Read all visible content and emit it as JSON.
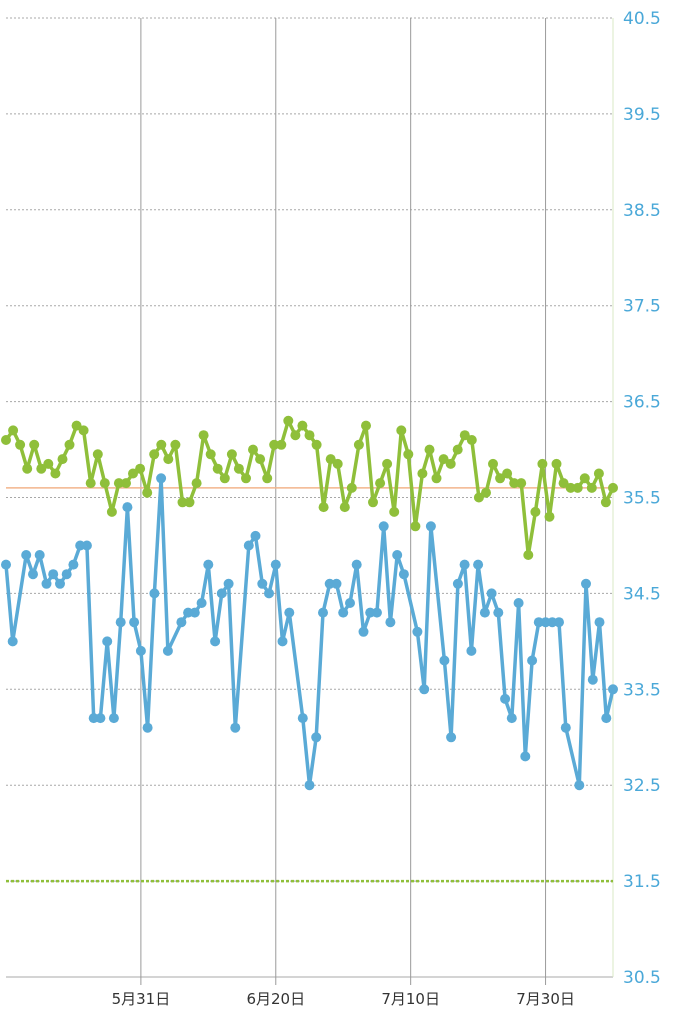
{
  "colors": {
    "series_a": "#5aaad6",
    "series_b": "#8fbf3a",
    "y_tick": "#4aa8d8",
    "x_tick": "#333333",
    "grid": "#a8a8a8",
    "reference_line": "#f2b48c",
    "threshold_line": "#8fbf3a"
  },
  "chart_data": {
    "type": "line",
    "title": "",
    "xlabel": "",
    "ylabel": "",
    "ylim": [
      30.5,
      40.5
    ],
    "y_axis_side": "right",
    "grid": true,
    "x_ticks": [
      "5月31日",
      "6月20日",
      "7月10日",
      "7月30日"
    ],
    "y_ticks": [
      "40.5",
      "39.5",
      "38.5",
      "37.5",
      "36.5",
      "35.5",
      "34.5",
      "33.5",
      "32.5",
      "31.5",
      "30.5"
    ],
    "reference_line": 35.6,
    "threshold_line": 31.5,
    "series": [
      {
        "color": "#8fbf3a",
        "values": [
          36.1,
          36.2,
          36.05,
          35.8,
          36.05,
          35.8,
          35.85,
          35.75,
          35.9,
          36.05,
          36.25,
          36.2,
          35.65,
          35.95,
          35.65,
          35.35,
          35.65,
          35.65,
          35.75,
          35.8,
          35.55,
          35.95,
          36.05,
          35.9,
          36.05,
          35.45,
          35.45,
          35.65,
          36.15,
          35.95,
          35.8,
          35.7,
          35.95,
          35.8,
          35.7,
          36.0,
          35.9,
          35.7,
          36.05,
          36.05,
          36.3,
          36.15,
          36.25,
          36.15,
          36.05,
          35.4,
          35.9,
          35.85,
          35.4,
          35.6,
          36.05,
          36.25,
          35.45,
          35.65,
          35.85,
          35.35,
          36.2,
          35.95,
          35.2,
          35.75,
          36.0,
          35.7,
          35.9,
          35.85,
          36.0,
          36.15,
          36.1,
          35.5,
          35.55,
          35.85,
          35.7,
          35.75,
          35.65,
          35.65,
          34.9,
          35.35,
          35.85,
          35.3,
          35.85,
          35.65,
          35.6,
          35.6,
          35.7,
          35.6,
          35.75,
          35.45,
          35.6
        ]
      },
      {
        "color": "#5aaad6",
        "values": [
          34.8,
          34.0,
          34.9,
          34.7,
          34.9,
          34.6,
          34.7,
          34.6,
          34.7,
          34.8,
          35.0,
          35.0,
          33.2,
          33.2,
          34.0,
          33.2,
          34.2,
          35.4,
          34.2,
          33.9,
          33.1,
          34.5,
          35.7,
          33.9,
          34.2,
          34.3,
          34.3,
          34.4,
          34.8,
          34.0,
          34.5,
          34.6,
          33.1,
          35.0,
          35.1,
          34.6,
          34.5,
          34.8,
          34.0,
          34.3,
          33.2,
          32.5,
          33.0,
          34.3,
          34.6,
          34.6,
          34.3,
          34.4,
          34.8,
          34.1,
          34.3,
          34.3,
          35.2,
          34.2,
          34.9,
          34.7,
          34.1,
          33.5,
          35.2,
          33.8,
          33.0,
          34.6,
          34.8,
          33.9,
          34.8,
          34.3,
          34.5,
          34.3,
          33.4,
          33.2,
          34.4,
          32.8,
          33.8,
          34.2,
          34.2,
          34.2,
          34.2,
          33.1,
          32.5,
          34.6,
          33.6,
          34.2,
          33.2,
          33.5
        ],
        "x_days": [
          0,
          1,
          3,
          4,
          5,
          6,
          7,
          8,
          9,
          10,
          11,
          12,
          13,
          14,
          15,
          16,
          17,
          18,
          19,
          20,
          21,
          22,
          23,
          24,
          26,
          27,
          28,
          29,
          30,
          31,
          32,
          33,
          34,
          36,
          37,
          38,
          39,
          40,
          41,
          42,
          44,
          45,
          46,
          47,
          48,
          49,
          50,
          51,
          52,
          53,
          54,
          55,
          56,
          57,
          58,
          59,
          61,
          62,
          63,
          65,
          66,
          67,
          68,
          69,
          70,
          71,
          72,
          73,
          74,
          75,
          76,
          77,
          78,
          79,
          80,
          81,
          82,
          83,
          85,
          86,
          87,
          88,
          89,
          90
        ]
      }
    ]
  }
}
